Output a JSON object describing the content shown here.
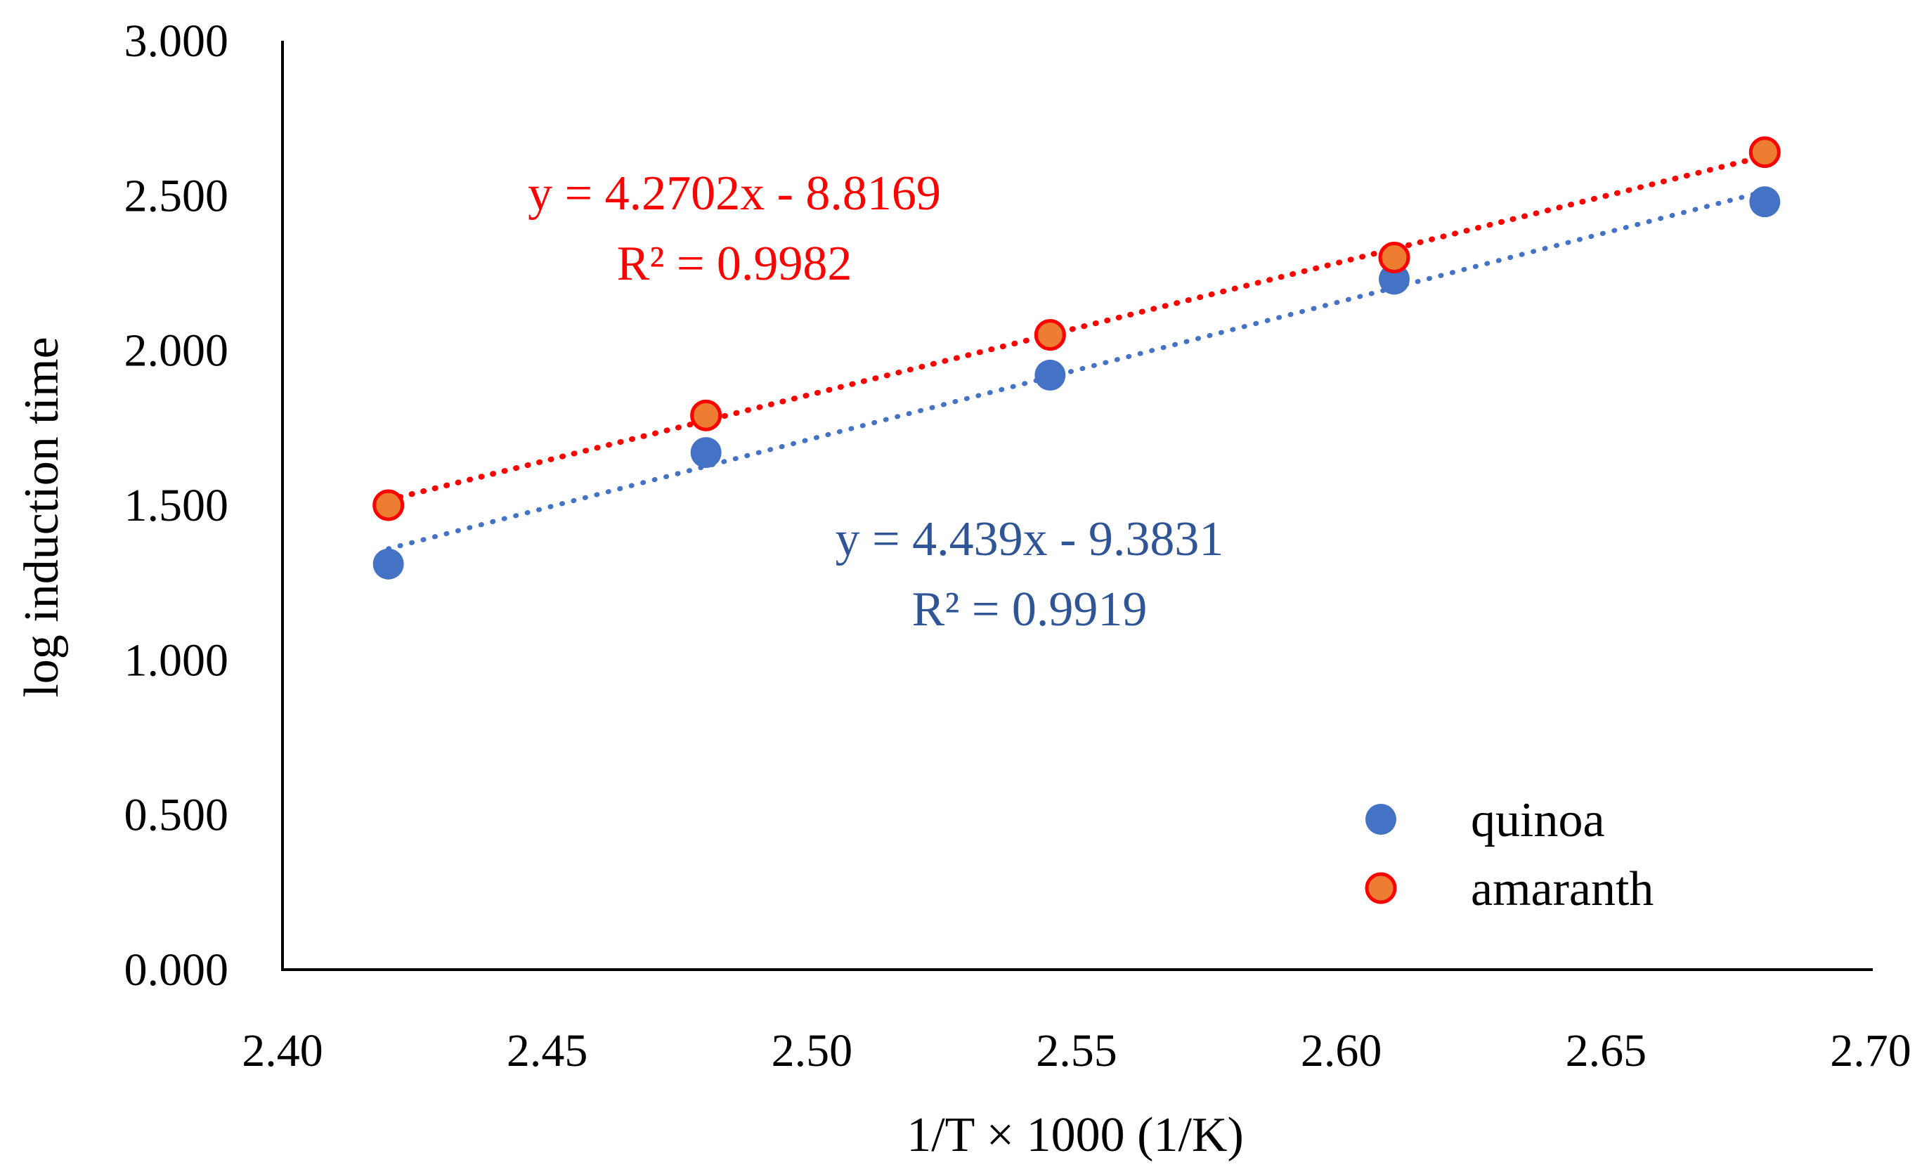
{
  "chart_data": {
    "type": "scatter",
    "title": "",
    "xlabel": "1/T × 1000 (1/K)",
    "ylabel": "log induction time",
    "xlim": [
      2.4,
      2.7
    ],
    "ylim": [
      0.0,
      3.0
    ],
    "x_ticks": [
      "2.40",
      "2.45",
      "2.50",
      "2.55",
      "2.60",
      "2.65",
      "2.70"
    ],
    "y_ticks": [
      "0.000",
      "0.500",
      "1.000",
      "1.500",
      "2.000",
      "2.500",
      "3.000"
    ],
    "grid": false,
    "legend_position": "bottom-right",
    "series": [
      {
        "name": "quinoa",
        "color": "#4472C4",
        "x": [
          2.42,
          2.48,
          2.545,
          2.61,
          2.68
        ],
        "y": [
          1.31,
          1.67,
          1.92,
          2.23,
          2.48
        ],
        "trendline": {
          "slope": 4.439,
          "intercept": -9.3831,
          "style": "dotted",
          "equation": "y = 4.439x - 9.3831",
          "r2_label": "R² = 0.9919"
        }
      },
      {
        "name": "amaranth",
        "color": "#ED7D31",
        "edge_color": "#FF0000",
        "x": [
          2.42,
          2.48,
          2.545,
          2.61,
          2.68
        ],
        "y": [
          1.5,
          1.79,
          2.05,
          2.3,
          2.64
        ],
        "trendline": {
          "slope": 4.2702,
          "intercept": -8.8169,
          "style": "dotted",
          "equation": "y = 4.2702x - 8.8169",
          "r2_label": "R² = 0.9982"
        }
      }
    ]
  }
}
